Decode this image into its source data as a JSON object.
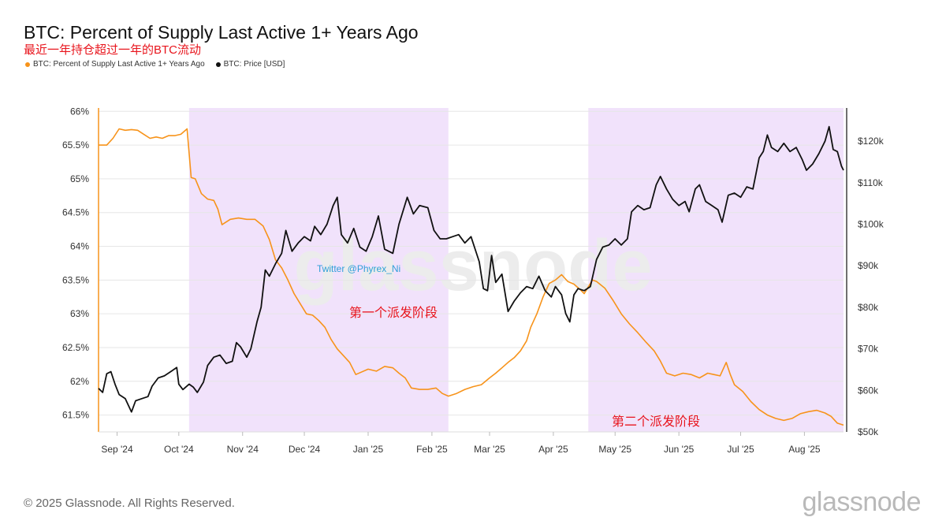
{
  "title": "BTC: Percent of Supply Last Active 1+ Years Ago",
  "subtitle": "最近一年持仓超过一年的BTC流动",
  "legend": [
    {
      "label": "BTC: Percent of Supply Last Active 1+ Years Ago",
      "color": "#f7931a"
    },
    {
      "label": "BTC: Price [USD]",
      "color": "#111111"
    }
  ],
  "footer": "© 2025 Glassnode. All Rights Reserved.",
  "brand": "glassnode",
  "watermark": "glassnode",
  "handle": "Twitter @Phyrex_Ni",
  "chart_data": {
    "type": "line",
    "x_range": [
      "2024-08-23",
      "2025-08-20"
    ],
    "x_tick_labels": [
      "Sep '24",
      "Oct '24",
      "Nov '24",
      "Dec '24",
      "Jan '25",
      "Feb '25",
      "Mar '25",
      "Apr '25",
      "May '25",
      "Jun '25",
      "Jul '25",
      "Aug '25"
    ],
    "x_tick_dates": [
      "2024-09-01",
      "2024-10-01",
      "2024-11-01",
      "2024-12-01",
      "2025-01-01",
      "2025-02-01",
      "2025-03-01",
      "2025-04-01",
      "2025-05-01",
      "2025-06-01",
      "2025-07-01",
      "2025-08-01"
    ],
    "y_left": {
      "ticks": [
        "61.5%",
        "62%",
        "62.5%",
        "63%",
        "63.5%",
        "64%",
        "64.5%",
        "65%",
        "65.5%",
        "66%"
      ],
      "ylim": [
        61.25,
        66.05
      ]
    },
    "y_right": {
      "ticks": [
        "$50k",
        "$60k",
        "$70k",
        "$80k",
        "$90k",
        "$100k",
        "$110k",
        "$120k"
      ],
      "ylim": [
        50000,
        128000
      ],
      "scale": "linear"
    },
    "grid": true,
    "shaded_regions": [
      {
        "start": "2024-10-06",
        "end": "2025-02-09",
        "label": "第一个派发阶段",
        "color": "#f1e2fb"
      },
      {
        "start": "2025-04-18",
        "end": "2025-08-20",
        "label": "第二个派发阶段",
        "color": "#f1e2fb"
      }
    ],
    "series": [
      {
        "name": "BTC: Percent of Supply Last Active 1+ Years Ago",
        "axis": "left",
        "color": "#f7931a",
        "points": [
          [
            "2024-08-23",
            65.5
          ],
          [
            "2024-08-27",
            65.5
          ],
          [
            "2024-08-30",
            65.6
          ],
          [
            "2024-09-02",
            65.74
          ],
          [
            "2024-09-05",
            65.72
          ],
          [
            "2024-09-08",
            65.73
          ],
          [
            "2024-09-11",
            65.72
          ],
          [
            "2024-09-14",
            65.66
          ],
          [
            "2024-09-17",
            65.6
          ],
          [
            "2024-09-20",
            65.62
          ],
          [
            "2024-09-23",
            65.6
          ],
          [
            "2024-09-26",
            65.64
          ],
          [
            "2024-09-29",
            65.64
          ],
          [
            "2024-10-02",
            65.66
          ],
          [
            "2024-10-05",
            65.74
          ],
          [
            "2024-10-07",
            65.02
          ],
          [
            "2024-10-09",
            65.0
          ],
          [
            "2024-10-12",
            64.78
          ],
          [
            "2024-10-15",
            64.7
          ],
          [
            "2024-10-18",
            64.68
          ],
          [
            "2024-10-20",
            64.55
          ],
          [
            "2024-10-22",
            64.32
          ],
          [
            "2024-10-26",
            64.4
          ],
          [
            "2024-10-30",
            64.42
          ],
          [
            "2024-11-03",
            64.4
          ],
          [
            "2024-11-07",
            64.4
          ],
          [
            "2024-11-11",
            64.3
          ],
          [
            "2024-11-14",
            64.1
          ],
          [
            "2024-11-17",
            63.8
          ],
          [
            "2024-11-20",
            63.68
          ],
          [
            "2024-11-23",
            63.5
          ],
          [
            "2024-11-26",
            63.3
          ],
          [
            "2024-11-29",
            63.15
          ],
          [
            "2024-12-02",
            63.0
          ],
          [
            "2024-12-05",
            62.98
          ],
          [
            "2024-12-08",
            62.9
          ],
          [
            "2024-12-11",
            62.8
          ],
          [
            "2024-12-14",
            62.62
          ],
          [
            "2024-12-17",
            62.48
          ],
          [
            "2024-12-20",
            62.38
          ],
          [
            "2024-12-23",
            62.28
          ],
          [
            "2024-12-26",
            62.1
          ],
          [
            "2024-12-29",
            62.14
          ],
          [
            "2025-01-01",
            62.18
          ],
          [
            "2025-01-05",
            62.15
          ],
          [
            "2025-01-09",
            62.22
          ],
          [
            "2025-01-13",
            62.2
          ],
          [
            "2025-01-16",
            62.12
          ],
          [
            "2025-01-19",
            62.05
          ],
          [
            "2025-01-22",
            61.9
          ],
          [
            "2025-01-26",
            61.88
          ],
          [
            "2025-01-30",
            61.88
          ],
          [
            "2025-02-03",
            61.9
          ],
          [
            "2025-02-06",
            61.82
          ],
          [
            "2025-02-09",
            61.78
          ],
          [
            "2025-02-13",
            61.82
          ],
          [
            "2025-02-17",
            61.88
          ],
          [
            "2025-02-21",
            61.92
          ],
          [
            "2025-02-25",
            61.95
          ],
          [
            "2025-03-01",
            62.05
          ],
          [
            "2025-03-04",
            62.12
          ],
          [
            "2025-03-07",
            62.2
          ],
          [
            "2025-03-10",
            62.28
          ],
          [
            "2025-03-13",
            62.35
          ],
          [
            "2025-03-16",
            62.45
          ],
          [
            "2025-03-19",
            62.6
          ],
          [
            "2025-03-21",
            62.8
          ],
          [
            "2025-03-24",
            63.0
          ],
          [
            "2025-03-27",
            63.25
          ],
          [
            "2025-03-30",
            63.45
          ],
          [
            "2025-04-02",
            63.5
          ],
          [
            "2025-04-05",
            63.58
          ],
          [
            "2025-04-08",
            63.48
          ],
          [
            "2025-04-11",
            63.44
          ],
          [
            "2025-04-14",
            63.36
          ],
          [
            "2025-04-16",
            63.3
          ],
          [
            "2025-04-18",
            63.4
          ],
          [
            "2025-04-20",
            63.5
          ],
          [
            "2025-04-22",
            63.48
          ],
          [
            "2025-04-26",
            63.38
          ],
          [
            "2025-04-30",
            63.2
          ],
          [
            "2025-05-04",
            63.0
          ],
          [
            "2025-05-08",
            62.85
          ],
          [
            "2025-05-12",
            62.72
          ],
          [
            "2025-05-16",
            62.58
          ],
          [
            "2025-05-20",
            62.45
          ],
          [
            "2025-05-23",
            62.3
          ],
          [
            "2025-05-26",
            62.12
          ],
          [
            "2025-05-30",
            62.08
          ],
          [
            "2025-06-03",
            62.12
          ],
          [
            "2025-06-07",
            62.1
          ],
          [
            "2025-06-11",
            62.05
          ],
          [
            "2025-06-15",
            62.12
          ],
          [
            "2025-06-18",
            62.1
          ],
          [
            "2025-06-21",
            62.08
          ],
          [
            "2025-06-24",
            62.28
          ],
          [
            "2025-06-26",
            62.1
          ],
          [
            "2025-06-28",
            61.95
          ],
          [
            "2025-07-02",
            61.85
          ],
          [
            "2025-07-06",
            61.7
          ],
          [
            "2025-07-10",
            61.58
          ],
          [
            "2025-07-14",
            61.5
          ],
          [
            "2025-07-18",
            61.45
          ],
          [
            "2025-07-22",
            61.42
          ],
          [
            "2025-07-26",
            61.45
          ],
          [
            "2025-07-30",
            61.52
          ],
          [
            "2025-08-03",
            61.55
          ],
          [
            "2025-08-07",
            61.57
          ],
          [
            "2025-08-11",
            61.53
          ],
          [
            "2025-08-14",
            61.48
          ],
          [
            "2025-08-17",
            61.38
          ],
          [
            "2025-08-20",
            61.35
          ]
        ]
      },
      {
        "name": "BTC: Price [USD]",
        "axis": "right",
        "color": "#111111",
        "points": [
          [
            "2024-08-23",
            60500
          ],
          [
            "2024-08-25",
            59500
          ],
          [
            "2024-08-27",
            64000
          ],
          [
            "2024-08-29",
            64500
          ],
          [
            "2024-08-31",
            61500
          ],
          [
            "2024-09-02",
            59000
          ],
          [
            "2024-09-05",
            58000
          ],
          [
            "2024-09-08",
            54800
          ],
          [
            "2024-09-10",
            57500
          ],
          [
            "2024-09-13",
            58000
          ],
          [
            "2024-09-16",
            58500
          ],
          [
            "2024-09-18",
            61000
          ],
          [
            "2024-09-21",
            63000
          ],
          [
            "2024-09-24",
            63500
          ],
          [
            "2024-09-27",
            64500
          ],
          [
            "2024-09-30",
            65500
          ],
          [
            "2024-10-01",
            61500
          ],
          [
            "2024-10-03",
            60200
          ],
          [
            "2024-10-06",
            61500
          ],
          [
            "2024-10-08",
            60800
          ],
          [
            "2024-10-10",
            59500
          ],
          [
            "2024-10-13",
            62000
          ],
          [
            "2024-10-15",
            66000
          ],
          [
            "2024-10-18",
            68000
          ],
          [
            "2024-10-21",
            68500
          ],
          [
            "2024-10-24",
            66500
          ],
          [
            "2024-10-27",
            67000
          ],
          [
            "2024-10-29",
            71500
          ],
          [
            "2024-10-31",
            70500
          ],
          [
            "2024-11-03",
            68000
          ],
          [
            "2024-11-05",
            70000
          ],
          [
            "2024-11-08",
            76500
          ],
          [
            "2024-11-10",
            80000
          ],
          [
            "2024-11-12",
            89000
          ],
          [
            "2024-11-14",
            87500
          ],
          [
            "2024-11-17",
            90500
          ],
          [
            "2024-11-20",
            93000
          ],
          [
            "2024-11-22",
            98500
          ],
          [
            "2024-11-25",
            93500
          ],
          [
            "2024-11-28",
            95500
          ],
          [
            "2024-12-01",
            97000
          ],
          [
            "2024-12-04",
            96000
          ],
          [
            "2024-12-06",
            99500
          ],
          [
            "2024-12-09",
            97500
          ],
          [
            "2024-12-12",
            100000
          ],
          [
            "2024-12-15",
            104500
          ],
          [
            "2024-12-17",
            106500
          ],
          [
            "2024-12-19",
            97500
          ],
          [
            "2024-12-22",
            95500
          ],
          [
            "2024-12-25",
            99000
          ],
          [
            "2024-12-28",
            94500
          ],
          [
            "2024-12-31",
            93500
          ],
          [
            "2025-01-03",
            97000
          ],
          [
            "2025-01-06",
            102000
          ],
          [
            "2025-01-09",
            94000
          ],
          [
            "2025-01-13",
            93000
          ],
          [
            "2025-01-16",
            100000
          ],
          [
            "2025-01-20",
            106500
          ],
          [
            "2025-01-23",
            102500
          ],
          [
            "2025-01-26",
            104500
          ],
          [
            "2025-01-30",
            104000
          ],
          [
            "2025-02-02",
            98500
          ],
          [
            "2025-02-05",
            96500
          ],
          [
            "2025-02-08",
            96500
          ],
          [
            "2025-02-11",
            97000
          ],
          [
            "2025-02-14",
            97500
          ],
          [
            "2025-02-17",
            95500
          ],
          [
            "2025-02-20",
            97000
          ],
          [
            "2025-02-24",
            91000
          ],
          [
            "2025-02-26",
            84500
          ],
          [
            "2025-02-28",
            84000
          ],
          [
            "2025-03-02",
            92500
          ],
          [
            "2025-03-04",
            86000
          ],
          [
            "2025-03-07",
            88000
          ],
          [
            "2025-03-10",
            79000
          ],
          [
            "2025-03-13",
            81500
          ],
          [
            "2025-03-16",
            83500
          ],
          [
            "2025-03-19",
            85000
          ],
          [
            "2025-03-22",
            84500
          ],
          [
            "2025-03-25",
            87500
          ],
          [
            "2025-03-28",
            84000
          ],
          [
            "2025-03-31",
            82500
          ],
          [
            "2025-04-02",
            85000
          ],
          [
            "2025-04-05",
            83000
          ],
          [
            "2025-04-07",
            78500
          ],
          [
            "2025-04-09",
            76500
          ],
          [
            "2025-04-11",
            83000
          ],
          [
            "2025-04-13",
            84500
          ],
          [
            "2025-04-16",
            84000
          ],
          [
            "2025-04-19",
            85000
          ],
          [
            "2025-04-22",
            91500
          ],
          [
            "2025-04-25",
            94500
          ],
          [
            "2025-04-28",
            95000
          ],
          [
            "2025-05-01",
            96500
          ],
          [
            "2025-05-04",
            95000
          ],
          [
            "2025-05-07",
            96500
          ],
          [
            "2025-05-09",
            103000
          ],
          [
            "2025-05-12",
            104500
          ],
          [
            "2025-05-15",
            103500
          ],
          [
            "2025-05-18",
            104000
          ],
          [
            "2025-05-21",
            109500
          ],
          [
            "2025-05-23",
            111500
          ],
          [
            "2025-05-26",
            108500
          ],
          [
            "2025-05-29",
            106000
          ],
          [
            "2025-06-01",
            104500
          ],
          [
            "2025-06-04",
            105500
          ],
          [
            "2025-06-06",
            103000
          ],
          [
            "2025-06-09",
            108500
          ],
          [
            "2025-06-11",
            109500
          ],
          [
            "2025-06-14",
            105500
          ],
          [
            "2025-06-17",
            104500
          ],
          [
            "2025-06-20",
            103500
          ],
          [
            "2025-06-22",
            100500
          ],
          [
            "2025-06-25",
            107000
          ],
          [
            "2025-06-28",
            107500
          ],
          [
            "2025-07-01",
            106500
          ],
          [
            "2025-07-04",
            109000
          ],
          [
            "2025-07-07",
            108500
          ],
          [
            "2025-07-10",
            116000
          ],
          [
            "2025-07-12",
            117500
          ],
          [
            "2025-07-14",
            121500
          ],
          [
            "2025-07-16",
            118500
          ],
          [
            "2025-07-19",
            117500
          ],
          [
            "2025-07-22",
            119500
          ],
          [
            "2025-07-25",
            117500
          ],
          [
            "2025-07-28",
            118500
          ],
          [
            "2025-07-31",
            115500
          ],
          [
            "2025-08-02",
            113000
          ],
          [
            "2025-08-05",
            114500
          ],
          [
            "2025-08-08",
            117000
          ],
          [
            "2025-08-11",
            120000
          ],
          [
            "2025-08-13",
            123500
          ],
          [
            "2025-08-15",
            118000
          ],
          [
            "2025-08-17",
            117500
          ],
          [
            "2025-08-19",
            114000
          ],
          [
            "2025-08-20",
            113000
          ]
        ]
      }
    ]
  }
}
